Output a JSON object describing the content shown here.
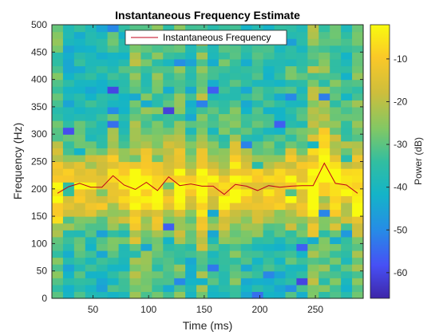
{
  "chart_data": {
    "type": "heatmap",
    "title": "Instantaneous Frequency Estimate",
    "xlabel": "Time (ms)",
    "ylabel": "Frequency (Hz)",
    "xlim": [
      13,
      293
    ],
    "ylim": [
      0,
      500
    ],
    "xticks": [
      50,
      100,
      150,
      200,
      250
    ],
    "yticks": [
      0,
      50,
      100,
      150,
      200,
      250,
      300,
      350,
      400,
      450,
      500
    ],
    "colorbar": {
      "label": "Power (dB)",
      "ticks": [
        -10,
        -20,
        -30,
        -40,
        -50,
        -60
      ],
      "range": [
        -66,
        -2
      ],
      "colormap": "parula"
    },
    "legend": {
      "position": "top-center",
      "entries": [
        "Instantaneous Frequency"
      ]
    },
    "series": [
      {
        "name": "Instantaneous Frequency",
        "color": "#c0001a",
        "x": [
          18,
          28,
          38,
          48,
          58,
          68,
          78,
          88,
          98,
          108,
          118,
          128,
          138,
          148,
          158,
          168,
          178,
          188,
          198,
          208,
          218,
          228,
          238,
          248,
          258,
          268,
          278,
          288
        ],
        "y": [
          192,
          204,
          210,
          203,
          203,
          224,
          207,
          199,
          212,
          197,
          222,
          206,
          209,
          205,
          205,
          190,
          208,
          205,
          197,
          206,
          203,
          205,
          206,
          206,
          247,
          210,
          207,
          192
        ]
      }
    ]
  }
}
